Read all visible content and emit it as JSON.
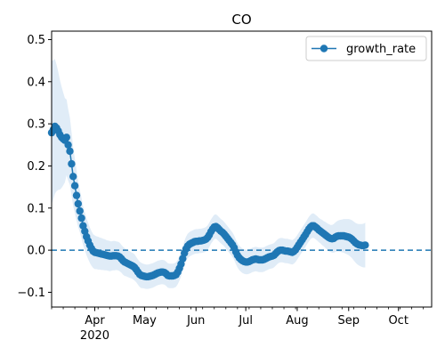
{
  "chart_data": {
    "type": "line",
    "title": "CO",
    "xlabel": "",
    "ylabel": "",
    "x_range": [
      "2020-03-06",
      "2020-10-21"
    ],
    "ylim": [
      -0.135,
      0.52
    ],
    "y_ticks": [
      -0.1,
      0.0,
      0.1,
      0.2,
      0.3,
      0.4,
      0.5
    ],
    "y_tick_labels": [
      "−0.1",
      "0.0",
      "0.1",
      "0.2",
      "0.3",
      "0.4",
      "0.5"
    ],
    "x_ticks": [
      {
        "date": "2020-04-01",
        "label": "Apr",
        "sublabel": "2020"
      },
      {
        "date": "2020-05-01",
        "label": "May",
        "sublabel": ""
      },
      {
        "date": "2020-06-01",
        "label": "Jun",
        "sublabel": ""
      },
      {
        "date": "2020-07-01",
        "label": "Jul",
        "sublabel": ""
      },
      {
        "date": "2020-08-01",
        "label": "Aug",
        "sublabel": ""
      },
      {
        "date": "2020-09-01",
        "label": "Sep",
        "sublabel": ""
      },
      {
        "date": "2020-10-01",
        "label": "Oct",
        "sublabel": ""
      }
    ],
    "reference_line": {
      "y": 0.0,
      "style": "dashed"
    },
    "legend": {
      "placement": "top-right",
      "entries": [
        "growth_rate"
      ]
    },
    "grid": false,
    "colors": {
      "line": "#1f77b4",
      "band": "#dbe9f6"
    },
    "series": [
      {
        "name": "growth_rate",
        "start_date": "2020-03-06",
        "step_days": 1,
        "values": [
          0.279,
          0.286,
          0.294,
          0.29,
          0.283,
          0.274,
          0.268,
          0.264,
          0.261,
          0.268,
          0.25,
          0.235,
          0.205,
          0.175,
          0.153,
          0.13,
          0.11,
          0.093,
          0.076,
          0.058,
          0.045,
          0.032,
          0.022,
          0.012,
          0.004,
          -0.002,
          -0.005,
          -0.006,
          -0.007,
          -0.008,
          -0.009,
          -0.01,
          -0.011,
          -0.012,
          -0.013,
          -0.014,
          -0.014,
          -0.013,
          -0.013,
          -0.013,
          -0.014,
          -0.016,
          -0.02,
          -0.025,
          -0.028,
          -0.03,
          -0.032,
          -0.034,
          -0.036,
          -0.038,
          -0.041,
          -0.046,
          -0.052,
          -0.057,
          -0.06,
          -0.061,
          -0.062,
          -0.063,
          -0.063,
          -0.062,
          -0.061,
          -0.06,
          -0.058,
          -0.056,
          -0.054,
          -0.053,
          -0.052,
          -0.052,
          -0.053,
          -0.056,
          -0.06,
          -0.061,
          -0.061,
          -0.061,
          -0.06,
          -0.058,
          -0.052,
          -0.043,
          -0.033,
          -0.02,
          -0.007,
          0.003,
          0.01,
          0.014,
          0.016,
          0.018,
          0.02,
          0.021,
          0.021,
          0.022,
          0.022,
          0.023,
          0.024,
          0.026,
          0.03,
          0.036,
          0.044,
          0.05,
          0.055,
          0.056,
          0.053,
          0.049,
          0.045,
          0.042,
          0.038,
          0.033,
          0.028,
          0.023,
          0.018,
          0.013,
          0.006,
          -0.004,
          -0.012,
          -0.018,
          -0.022,
          -0.025,
          -0.027,
          -0.028,
          -0.028,
          -0.027,
          -0.025,
          -0.023,
          -0.022,
          -0.021,
          -0.022,
          -0.023,
          -0.023,
          -0.023,
          -0.022,
          -0.02,
          -0.018,
          -0.016,
          -0.015,
          -0.014,
          -0.012,
          -0.008,
          -0.004,
          -0.001,
          0.0,
          0.0,
          -0.001,
          -0.002,
          -0.002,
          -0.003,
          -0.004,
          -0.005,
          -0.003,
          0.001,
          0.007,
          0.013,
          0.019,
          0.025,
          0.031,
          0.037,
          0.044,
          0.05,
          0.055,
          0.058,
          0.058,
          0.055,
          0.052,
          0.048,
          0.045,
          0.042,
          0.039,
          0.036,
          0.033,
          0.03,
          0.028,
          0.027,
          0.028,
          0.031,
          0.033,
          0.034,
          0.034,
          0.034,
          0.034,
          0.033,
          0.032,
          0.031,
          0.029,
          0.026,
          0.022,
          0.018,
          0.015,
          0.013,
          0.012,
          0.011,
          0.011,
          0.012
        ],
        "band_halfwidth": [
          0.17,
          0.165,
          0.16,
          0.15,
          0.14,
          0.13,
          0.12,
          0.11,
          0.1,
          0.09,
          0.085,
          0.08,
          0.075,
          0.07,
          0.065,
          0.06,
          0.055,
          0.05,
          0.048,
          0.046,
          0.045,
          0.044,
          0.043,
          0.042,
          0.041,
          0.04,
          0.04,
          0.039,
          0.039,
          0.038,
          0.038,
          0.037,
          0.037,
          0.036,
          0.036,
          0.036,
          0.035,
          0.035,
          0.035,
          0.034,
          0.034,
          0.034,
          0.033,
          0.033,
          0.033,
          0.032,
          0.032,
          0.032,
          0.031,
          0.031,
          0.031,
          0.03,
          0.03,
          0.03,
          0.03,
          0.029,
          0.029,
          0.029,
          0.029,
          0.029,
          0.029,
          0.029,
          0.029,
          0.029,
          0.029,
          0.029,
          0.029,
          0.029,
          0.029,
          0.029,
          0.029,
          0.029,
          0.029,
          0.029,
          0.029,
          0.029,
          0.029,
          0.029,
          0.029,
          0.029,
          0.029,
          0.029,
          0.029,
          0.029,
          0.029,
          0.029,
          0.029,
          0.029,
          0.029,
          0.029,
          0.029,
          0.029,
          0.029,
          0.029,
          0.029,
          0.029,
          0.029,
          0.029,
          0.029,
          0.029,
          0.029,
          0.029,
          0.029,
          0.029,
          0.029,
          0.029,
          0.029,
          0.029,
          0.029,
          0.029,
          0.029,
          0.029,
          0.029,
          0.029,
          0.029,
          0.029,
          0.029,
          0.029,
          0.029,
          0.029,
          0.029,
          0.029,
          0.029,
          0.029,
          0.029,
          0.029,
          0.029,
          0.029,
          0.029,
          0.029,
          0.029,
          0.029,
          0.029,
          0.029,
          0.029,
          0.029,
          0.029,
          0.029,
          0.029,
          0.029,
          0.029,
          0.029,
          0.029,
          0.029,
          0.029,
          0.029,
          0.029,
          0.029,
          0.029,
          0.029,
          0.029,
          0.029,
          0.029,
          0.029,
          0.029,
          0.029,
          0.029,
          0.029,
          0.029,
          0.029,
          0.029,
          0.029,
          0.029,
          0.03,
          0.03,
          0.031,
          0.031,
          0.032,
          0.032,
          0.033,
          0.034,
          0.035,
          0.036,
          0.037,
          0.038,
          0.039,
          0.04,
          0.041,
          0.042,
          0.043,
          0.044,
          0.045,
          0.046,
          0.047,
          0.048,
          0.049,
          0.05,
          0.051,
          0.052,
          0.053,
          0.054
        ]
      }
    ]
  }
}
